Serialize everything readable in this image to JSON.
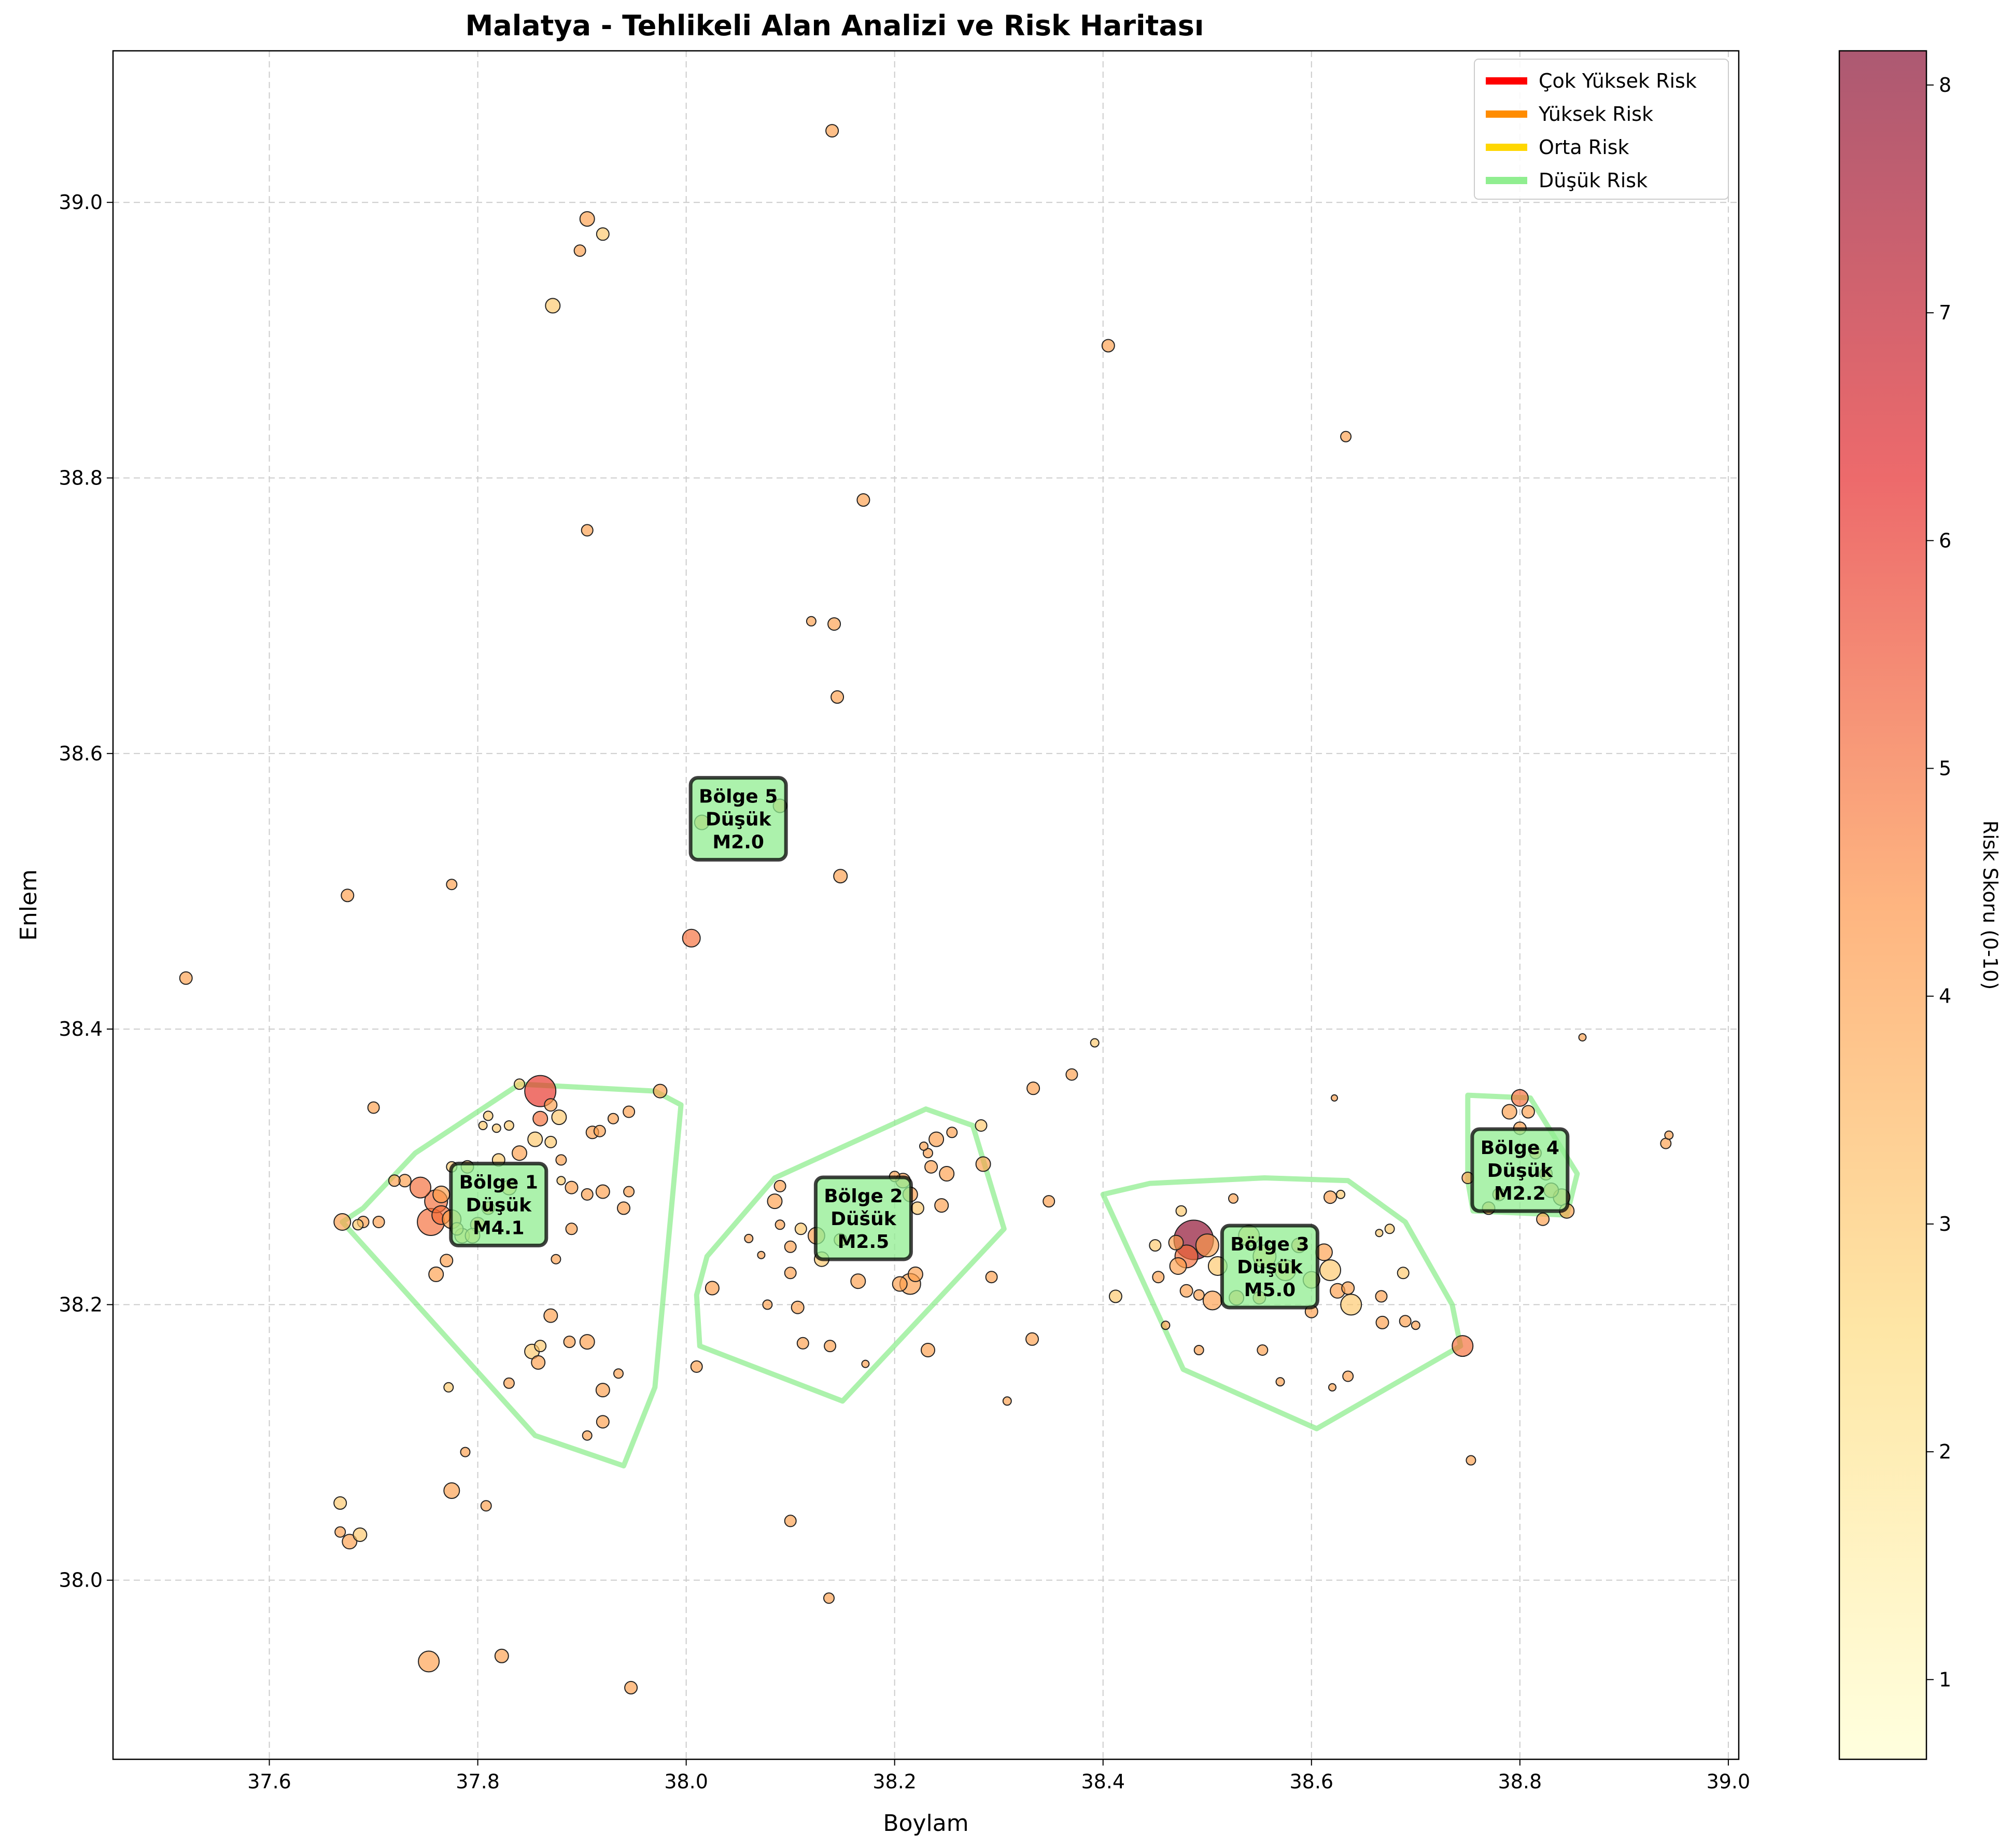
{
  "chart_data": {
    "type": "scatter",
    "title": "Malatya - Tehlikeli Alan Analizi ve Risk Haritası",
    "xlabel": "Boylam",
    "ylabel": "Enlem",
    "xlim": [
      37.45,
      39.01
    ],
    "ylim": [
      37.87,
      39.11
    ],
    "xticks": [
      "37.6",
      "37.8",
      "38.0",
      "38.2",
      "38.4",
      "38.6",
      "38.8",
      "39.0"
    ],
    "yticks": [
      "38.0",
      "38.2",
      "38.4",
      "38.6",
      "38.8",
      "39.0"
    ],
    "grid": true,
    "colorbar": {
      "label": "Risk Skoru (0-10)",
      "min": 0.65,
      "max": 8.15,
      "ticks": [
        "1",
        "2",
        "3",
        "4",
        "5",
        "6",
        "7",
        "8"
      ]
    },
    "legend": {
      "position": "top-right",
      "items": [
        {
          "label": "Çok Yüksek Risk",
          "color": "#ff0000"
        },
        {
          "label": "Yüksek Risk",
          "color": "#ff8c00"
        },
        {
          "label": "Orta Risk",
          "color": "#ffd700"
        },
        {
          "label": "Düşük Risk",
          "color": "#90ee90"
        }
      ]
    },
    "zones": [
      {
        "name": "Bölge 1",
        "level": "Düşük",
        "mag": "M4.1",
        "label_x": 37.82,
        "label_y": 38.27,
        "hull": [
          [
            37.67,
            38.26
          ],
          [
            37.69,
            38.27
          ],
          [
            37.74,
            38.31
          ],
          [
            37.84,
            38.36
          ],
          [
            37.97,
            38.355
          ],
          [
            37.995,
            38.345
          ],
          [
            37.97,
            38.14
          ],
          [
            37.94,
            38.083
          ],
          [
            37.855,
            38.105
          ]
        ]
      },
      {
        "name": "Bölge 2",
        "level": "Düšük",
        "mag": "M2.5",
        "label_x": 38.17,
        "label_y": 38.26,
        "hull": [
          [
            38.01,
            38.207
          ],
          [
            38.02,
            38.235
          ],
          [
            38.085,
            38.292
          ],
          [
            38.23,
            38.342
          ],
          [
            38.275,
            38.33
          ],
          [
            38.305,
            38.255
          ],
          [
            38.15,
            38.13
          ],
          [
            38.013,
            38.17
          ]
        ]
      },
      {
        "name": "Bölge 3",
        "level": "Düşük",
        "mag": "M5.0",
        "label_x": 38.56,
        "label_y": 38.225,
        "hull": [
          [
            38.4,
            38.28
          ],
          [
            38.445,
            38.288
          ],
          [
            38.555,
            38.292
          ],
          [
            38.635,
            38.29
          ],
          [
            38.69,
            38.26
          ],
          [
            38.735,
            38.2
          ],
          [
            38.743,
            38.17
          ],
          [
            38.605,
            38.11
          ],
          [
            38.477,
            38.153
          ]
        ]
      },
      {
        "name": "Bölge 4",
        "level": "Düşük",
        "mag": "M2.2",
        "label_x": 38.8,
        "label_y": 38.295,
        "hull": [
          [
            38.75,
            38.352
          ],
          [
            38.81,
            38.35
          ],
          [
            38.855,
            38.295
          ],
          [
            38.845,
            38.265
          ],
          [
            38.755,
            38.268
          ],
          [
            38.75,
            38.29
          ]
        ]
      },
      {
        "name": "Bölge 5",
        "level": "Düşük",
        "mag": "M2.0",
        "label_x": 38.05,
        "label_y": 38.55,
        "hull": []
      }
    ],
    "points": [
      [
        37.52,
        38.437,
        4,
        12
      ],
      [
        37.675,
        38.497,
        4,
        12
      ],
      [
        37.775,
        38.505,
        4,
        10
      ],
      [
        37.872,
        38.925,
        3,
        14
      ],
      [
        37.905,
        38.988,
        4,
        14
      ],
      [
        37.92,
        38.977,
        3,
        12
      ],
      [
        37.898,
        38.965,
        4,
        11
      ],
      [
        37.905,
        38.762,
        4,
        11
      ],
      [
        38.14,
        39.052,
        4,
        12
      ],
      [
        38.405,
        38.896,
        4,
        12
      ],
      [
        38.633,
        38.83,
        4,
        10
      ],
      [
        38.17,
        38.784,
        4,
        12
      ],
      [
        38.12,
        38.696,
        4,
        9
      ],
      [
        38.142,
        38.694,
        4,
        12
      ],
      [
        38.145,
        38.641,
        4,
        12
      ],
      [
        38.09,
        38.562,
        4,
        13
      ],
      [
        38.015,
        38.55,
        4,
        14
      ],
      [
        38.148,
        38.511,
        4,
        13
      ],
      [
        38.005,
        38.466,
        5,
        17
      ],
      [
        38.392,
        38.39,
        3,
        8
      ],
      [
        38.37,
        38.367,
        4,
        11
      ],
      [
        38.333,
        38.357,
        4,
        12
      ],
      [
        38.86,
        38.394,
        4,
        7
      ],
      [
        38.94,
        38.317,
        4,
        10
      ],
      [
        38.943,
        38.323,
        4,
        8
      ],
      [
        37.755,
        38.26,
        5,
        26
      ],
      [
        37.76,
        38.275,
        5,
        22
      ],
      [
        37.745,
        38.285,
        5,
        20
      ],
      [
        37.765,
        38.265,
        5,
        18
      ],
      [
        37.73,
        38.29,
        4,
        12
      ],
      [
        37.775,
        38.262,
        4,
        18
      ],
      [
        37.785,
        38.25,
        3,
        14
      ],
      [
        37.8,
        38.258,
        4,
        14
      ],
      [
        37.81,
        38.27,
        4,
        12
      ],
      [
        37.83,
        38.285,
        3,
        14
      ],
      [
        37.82,
        38.305,
        3,
        12
      ],
      [
        37.84,
        38.31,
        4,
        14
      ],
      [
        37.855,
        38.32,
        3,
        14
      ],
      [
        37.86,
        38.335,
        5,
        14
      ],
      [
        37.87,
        38.345,
        4,
        12
      ],
      [
        37.878,
        38.336,
        3,
        14
      ],
      [
        37.88,
        38.305,
        4,
        10
      ],
      [
        37.88,
        38.29,
        3,
        8
      ],
      [
        37.89,
        38.285,
        4,
        12
      ],
      [
        37.86,
        38.355,
        6,
        30
      ],
      [
        37.84,
        38.36,
        3,
        10
      ],
      [
        37.87,
        38.318,
        3,
        11
      ],
      [
        37.805,
        38.33,
        3,
        8
      ],
      [
        37.81,
        38.337,
        3,
        9
      ],
      [
        37.818,
        38.328,
        3,
        8
      ],
      [
        37.83,
        38.33,
        3,
        9
      ],
      [
        37.79,
        38.3,
        3,
        12
      ],
      [
        37.775,
        38.3,
        3,
        10
      ],
      [
        37.765,
        38.28,
        4,
        16
      ],
      [
        37.76,
        38.222,
        4,
        14
      ],
      [
        37.77,
        38.232,
        4,
        12
      ],
      [
        37.78,
        38.255,
        3,
        12
      ],
      [
        37.795,
        38.25,
        3,
        14
      ],
      [
        37.875,
        38.233,
        4,
        9
      ],
      [
        37.89,
        38.255,
        4,
        11
      ],
      [
        37.72,
        38.29,
        4,
        11
      ],
      [
        37.67,
        38.26,
        4,
        16
      ],
      [
        37.69,
        38.26,
        4,
        11
      ],
      [
        37.705,
        38.26,
        4,
        11
      ],
      [
        37.7,
        38.343,
        4,
        11
      ],
      [
        37.685,
        38.258,
        3,
        10
      ],
      [
        37.91,
        38.325,
        4,
        12
      ],
      [
        37.917,
        38.326,
        4,
        11
      ],
      [
        37.93,
        38.335,
        4,
        10
      ],
      [
        37.945,
        38.34,
        4,
        11
      ],
      [
        37.975,
        38.355,
        4,
        13
      ],
      [
        37.92,
        38.282,
        4,
        13
      ],
      [
        37.905,
        38.28,
        4,
        11
      ],
      [
        37.945,
        38.282,
        4,
        10
      ],
      [
        37.94,
        38.27,
        4,
        12
      ],
      [
        37.87,
        38.192,
        4,
        13
      ],
      [
        37.86,
        38.17,
        3,
        11
      ],
      [
        37.858,
        38.158,
        4,
        13
      ],
      [
        37.852,
        38.166,
        3,
        14
      ],
      [
        37.888,
        38.173,
        4,
        11
      ],
      [
        37.905,
        38.173,
        4,
        14
      ],
      [
        37.92,
        38.138,
        4,
        13
      ],
      [
        37.935,
        38.15,
        4,
        9
      ],
      [
        37.92,
        38.115,
        4,
        12
      ],
      [
        37.905,
        38.105,
        4,
        9
      ],
      [
        37.83,
        38.143,
        4,
        10
      ],
      [
        37.772,
        38.14,
        3,
        9
      ],
      [
        37.788,
        38.093,
        4,
        9
      ],
      [
        37.775,
        38.065,
        4,
        15
      ],
      [
        37.808,
        38.054,
        4,
        10
      ],
      [
        37.668,
        38.056,
        3,
        12
      ],
      [
        37.668,
        38.035,
        4,
        10
      ],
      [
        37.677,
        38.028,
        4,
        14
      ],
      [
        37.687,
        38.033,
        3,
        13
      ],
      [
        37.753,
        37.941,
        4,
        20
      ],
      [
        37.823,
        37.945,
        4,
        13
      ],
      [
        37.947,
        37.922,
        4,
        12
      ],
      [
        38.085,
        38.275,
        4,
        14
      ],
      [
        38.09,
        38.286,
        4,
        11
      ],
      [
        38.1,
        38.242,
        4,
        11
      ],
      [
        38.11,
        38.255,
        3,
        11
      ],
      [
        38.125,
        38.25,
        4,
        16
      ],
      [
        38.13,
        38.233,
        3,
        14
      ],
      [
        38.148,
        38.247,
        3,
        12
      ],
      [
        38.165,
        38.217,
        4,
        14
      ],
      [
        38.2,
        38.293,
        4,
        10
      ],
      [
        38.208,
        38.29,
        4,
        14
      ],
      [
        38.215,
        38.28,
        4,
        14
      ],
      [
        38.222,
        38.27,
        3,
        12
      ],
      [
        38.235,
        38.3,
        4,
        12
      ],
      [
        38.24,
        38.32,
        4,
        14
      ],
      [
        38.25,
        38.295,
        4,
        14
      ],
      [
        38.245,
        38.272,
        4,
        13
      ],
      [
        38.232,
        38.31,
        4,
        9
      ],
      [
        38.228,
        38.315,
        4,
        8
      ],
      [
        38.215,
        38.215,
        4,
        20
      ],
      [
        38.205,
        38.215,
        4,
        14
      ],
      [
        38.22,
        38.222,
        4,
        14
      ],
      [
        38.285,
        38.302,
        4,
        14
      ],
      [
        38.283,
        38.33,
        3,
        11
      ],
      [
        38.255,
        38.325,
        4,
        10
      ],
      [
        38.06,
        38.248,
        4,
        8
      ],
      [
        38.072,
        38.236,
        4,
        7
      ],
      [
        38.1,
        38.223,
        4,
        11
      ],
      [
        38.107,
        38.198,
        4,
        12
      ],
      [
        38.078,
        38.2,
        4,
        9
      ],
      [
        38.09,
        38.258,
        4,
        9
      ],
      [
        38.025,
        38.212,
        4,
        13
      ],
      [
        38.01,
        38.155,
        4,
        11
      ],
      [
        38.112,
        38.172,
        4,
        11
      ],
      [
        38.138,
        38.17,
        4,
        11
      ],
      [
        38.172,
        38.157,
        4,
        7
      ],
      [
        38.232,
        38.167,
        4,
        13
      ],
      [
        38.293,
        38.22,
        4,
        11
      ],
      [
        38.348,
        38.275,
        4,
        11
      ],
      [
        38.332,
        38.175,
        4,
        12
      ],
      [
        38.308,
        38.13,
        4,
        8
      ],
      [
        38.1,
        38.043,
        4,
        11
      ],
      [
        38.137,
        37.987,
        4,
        10
      ],
      [
        38.487,
        38.247,
        8,
        38
      ],
      [
        38.48,
        38.235,
        5,
        22
      ],
      [
        38.47,
        38.245,
        4,
        14
      ],
      [
        38.472,
        38.228,
        4,
        16
      ],
      [
        38.5,
        38.243,
        4,
        22
      ],
      [
        38.51,
        38.228,
        3,
        18
      ],
      [
        38.505,
        38.203,
        4,
        18
      ],
      [
        38.528,
        38.205,
        4,
        14
      ],
      [
        38.54,
        38.25,
        3,
        20
      ],
      [
        38.555,
        38.235,
        3,
        22
      ],
      [
        38.575,
        38.225,
        3,
        20
      ],
      [
        38.588,
        38.243,
        4,
        14
      ],
      [
        38.6,
        38.218,
        3,
        16
      ],
      [
        38.612,
        38.238,
        4,
        16
      ],
      [
        38.618,
        38.225,
        3,
        20
      ],
      [
        38.625,
        38.21,
        4,
        14
      ],
      [
        38.638,
        38.2,
        3,
        20
      ],
      [
        38.635,
        38.212,
        4,
        12
      ],
      [
        38.6,
        38.195,
        4,
        12
      ],
      [
        38.55,
        38.205,
        4,
        12
      ],
      [
        38.45,
        38.243,
        3,
        11
      ],
      [
        38.453,
        38.22,
        4,
        11
      ],
      [
        38.475,
        38.268,
        3,
        10
      ],
      [
        38.48,
        38.21,
        4,
        12
      ],
      [
        38.492,
        38.207,
        4,
        10
      ],
      [
        38.46,
        38.185,
        4,
        8
      ],
      [
        38.492,
        38.167,
        4,
        9
      ],
      [
        38.553,
        38.167,
        4,
        10
      ],
      [
        38.57,
        38.144,
        4,
        8
      ],
      [
        38.62,
        38.14,
        4,
        7
      ],
      [
        38.635,
        38.148,
        4,
        10
      ],
      [
        38.667,
        38.206,
        4,
        11
      ],
      [
        38.668,
        38.187,
        4,
        12
      ],
      [
        38.69,
        38.188,
        4,
        11
      ],
      [
        38.7,
        38.185,
        4,
        8
      ],
      [
        38.688,
        38.223,
        3,
        11
      ],
      [
        38.675,
        38.255,
        3,
        9
      ],
      [
        38.665,
        38.252,
        3,
        7
      ],
      [
        38.618,
        38.278,
        4,
        12
      ],
      [
        38.628,
        38.28,
        3,
        8
      ],
      [
        38.622,
        38.35,
        4,
        6
      ],
      [
        38.525,
        38.277,
        4,
        9
      ],
      [
        38.412,
        38.206,
        3,
        12
      ],
      [
        38.745,
        38.17,
        5,
        20
      ],
      [
        38.753,
        38.087,
        4,
        9
      ],
      [
        38.8,
        38.35,
        5,
        16
      ],
      [
        38.79,
        38.34,
        4,
        14
      ],
      [
        38.8,
        38.328,
        4,
        12
      ],
      [
        38.815,
        38.31,
        4,
        11
      ],
      [
        38.825,
        38.295,
        4,
        12
      ],
      [
        38.83,
        38.283,
        4,
        14
      ],
      [
        38.84,
        38.278,
        4,
        16
      ],
      [
        38.845,
        38.268,
        4,
        14
      ],
      [
        38.822,
        38.262,
        4,
        12
      ],
      [
        38.78,
        38.28,
        4,
        12
      ],
      [
        38.77,
        38.27,
        4,
        12
      ],
      [
        38.75,
        38.292,
        4,
        11
      ],
      [
        38.808,
        38.34,
        4,
        12
      ]
    ]
  }
}
